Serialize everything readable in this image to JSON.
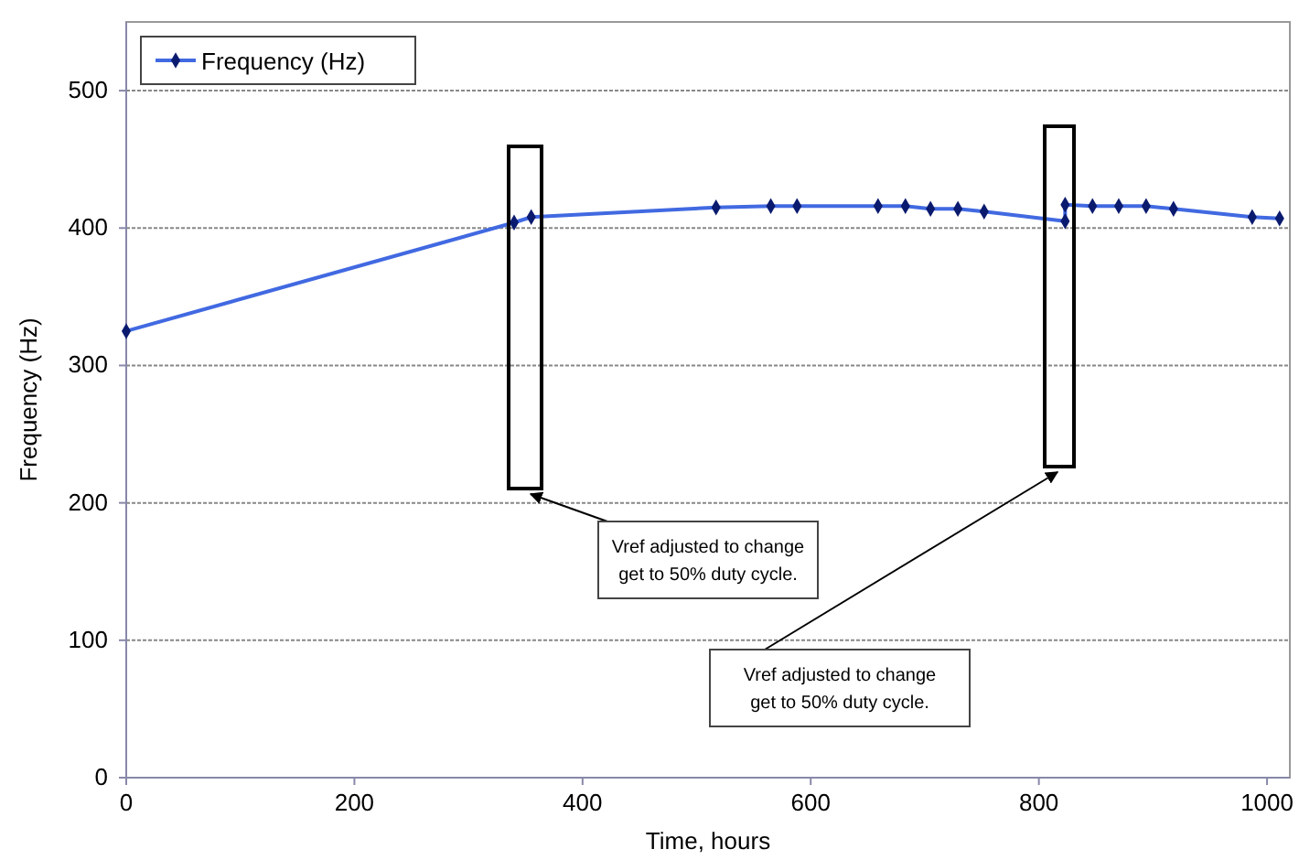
{
  "chart_data": {
    "type": "line",
    "xlabel": "Time, hours",
    "ylabel": "Frequency (Hz)",
    "xlim": [
      0,
      1020
    ],
    "xticks": [
      0,
      200,
      400,
      600,
      800,
      1000
    ],
    "ylim": [
      0,
      550
    ],
    "yticks": [
      0,
      100,
      200,
      300,
      400,
      500
    ],
    "grid": "y",
    "legend": "top left",
    "marker": "diamond",
    "line_style": "solid",
    "series": [
      {
        "name": "Frequency (Hz)",
        "color": "#4169e1",
        "x": [
          0,
          340,
          355,
          517,
          565,
          588,
          659,
          683,
          705,
          729,
          752,
          823,
          823,
          847,
          870,
          894,
          918,
          987,
          1011
        ],
        "values": [
          325,
          404,
          408,
          415,
          416,
          416,
          416,
          416,
          414,
          414,
          412,
          405,
          417,
          416,
          416,
          416,
          414,
          408,
          407
        ]
      }
    ],
    "annotations": [
      "Vref adjusted to change get to 50% duty cycle.",
      "Vref adjusted to change get to 50% duty cycle."
    ]
  }
}
